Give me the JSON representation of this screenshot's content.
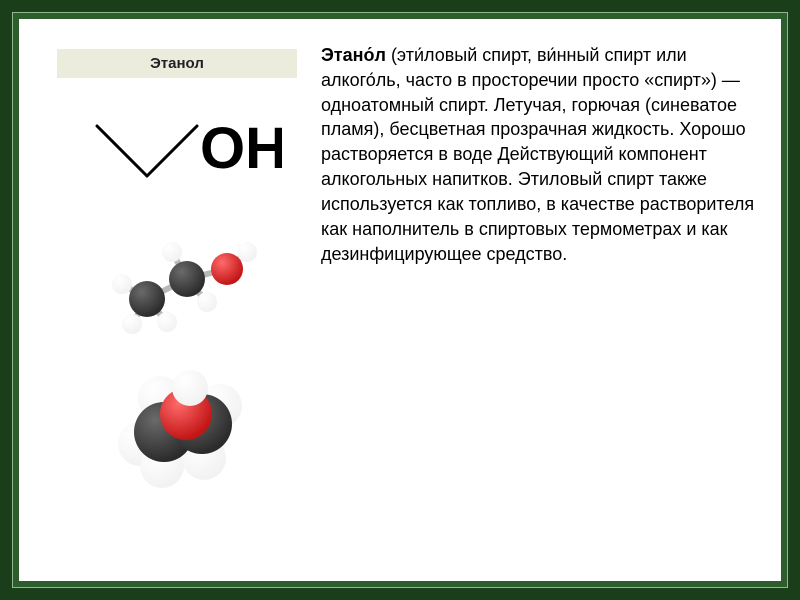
{
  "label": "Этанол",
  "text_lead_bold": "Этано́л",
  "text_body": " (эти́ловый спирт, ви́нный спирт или алкого́ль, часто в просторечии просто «спирт») — одноатомный спирт. Летучая, горючая (синеватое пламя), бесцветная прозрачная жидкость. Хорошо растворяется в воде Действующий компонент алкогольных напитков. Этиловый спирт также используется как топливо, в качестве растворителя как наполнитель в спиртовых термометрах и как дезинфицирующее средство.",
  "structural": {
    "oh_label": "OH",
    "line_color": "#000000",
    "line_width": 3
  },
  "colors": {
    "outer_bg": "#1a3d1a",
    "mid_bg": "#2d5c2d",
    "mid_border": "#8fb88f",
    "page_bg": "#ffffff",
    "band_bg": "#ebecdc",
    "atom_dark": "#2b2b2b",
    "atom_dark_hi": "#6a6a6a",
    "atom_red": "#c21515",
    "atom_red_hi": "#ff6a6a",
    "atom_white": "#f2f2f2",
    "atom_white_hi": "#ffffff",
    "bond": "#b8b8b8"
  }
}
